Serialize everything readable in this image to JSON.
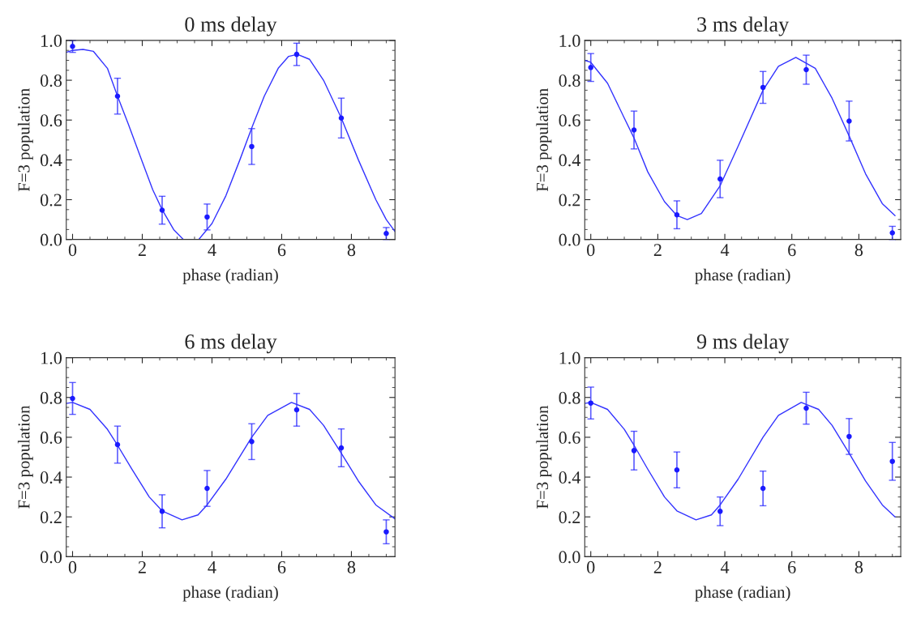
{
  "chart_data": [
    {
      "type": "scatter",
      "title": "0 ms delay",
      "xlabel": "phase (radian)",
      "ylabel": "F=3 population",
      "xlim": [
        -0.18,
        9.25
      ],
      "ylim": [
        0,
        1
      ],
      "xticks": [
        0,
        2,
        4,
        6,
        8
      ],
      "yticks": [
        {
          "value": 0,
          "label": "0.0"
        },
        {
          "value": 0.2,
          "label": "0.2"
        },
        {
          "value": 0.4,
          "label": "0.4"
        },
        {
          "value": 0.6,
          "label": "0.6"
        },
        {
          "value": 0.8,
          "label": "0.8"
        },
        {
          "value": 1,
          "label": "1.0"
        }
      ],
      "grid": false,
      "legend": false,
      "series": [
        {
          "type": "scatter",
          "marker": "circle",
          "color": "#1a1aff",
          "x": [
            0,
            1.29,
            2.57,
            3.86,
            5.14,
            6.43,
            7.71,
            9.0
          ],
          "values": [
            0.97,
            0.72,
            0.147,
            0.113,
            0.467,
            0.93,
            0.61,
            0.03
          ],
          "errors": [
            0.03,
            0.09,
            0.07,
            0.065,
            0.09,
            0.056,
            0.1,
            0.03
          ]
        },
        {
          "type": "line",
          "marker": "none",
          "color": "#3333ff",
          "x": [
            -0.18,
            0,
            0.3,
            0.6,
            1.0,
            1.29,
            1.6,
            2.0,
            2.3,
            2.57,
            2.9,
            3.18,
            3.4,
            3.62,
            4.0,
            4.4,
            4.8,
            5.14,
            5.5,
            5.9,
            6.2,
            6.45,
            6.8,
            7.2,
            7.71,
            8.2,
            8.7,
            9.0,
            9.25
          ],
          "values": [
            0.94,
            0.95,
            0.955,
            0.945,
            0.86,
            0.72,
            0.58,
            0.39,
            0.25,
            0.15,
            0.05,
            0.0,
            null,
            0.0,
            0.08,
            0.22,
            0.4,
            0.56,
            0.72,
            0.86,
            0.92,
            0.93,
            0.905,
            0.8,
            0.61,
            0.4,
            0.2,
            0.1,
            0.04
          ]
        }
      ]
    },
    {
      "type": "scatter",
      "title": "3 ms delay",
      "xlabel": "phase (radian)",
      "ylabel": "F=3 population",
      "xlim": [
        -0.18,
        9.25
      ],
      "ylim": [
        0,
        1
      ],
      "xticks": [
        0,
        2,
        4,
        6,
        8
      ],
      "yticks": [
        {
          "value": 0,
          "label": "0.0"
        },
        {
          "value": 0.2,
          "label": "0.2"
        },
        {
          "value": 0.4,
          "label": "0.4"
        },
        {
          "value": 0.6,
          "label": "0.6"
        },
        {
          "value": 0.8,
          "label": "0.8"
        },
        {
          "value": 1,
          "label": "1.0"
        }
      ],
      "grid": false,
      "legend": false,
      "series": [
        {
          "type": "scatter",
          "marker": "circle",
          "color": "#1a1aff",
          "x": [
            0,
            1.29,
            2.57,
            3.86,
            5.14,
            6.43,
            7.71,
            9.0
          ],
          "values": [
            0.864,
            0.55,
            0.124,
            0.304,
            0.764,
            0.853,
            0.595,
            0.033
          ],
          "errors": [
            0.07,
            0.095,
            0.07,
            0.094,
            0.08,
            0.073,
            0.1,
            0.033
          ]
        },
        {
          "type": "line",
          "marker": "none",
          "color": "#3333ff",
          "x": [
            -0.18,
            0,
            0.5,
            1.0,
            1.29,
            1.7,
            2.2,
            2.57,
            2.88,
            3.3,
            3.86,
            4.4,
            5.14,
            5.6,
            6.12,
            6.7,
            7.2,
            7.71,
            8.2,
            8.7,
            9.08
          ],
          "values": [
            0.9,
            0.89,
            0.785,
            0.61,
            0.51,
            0.34,
            0.19,
            0.12,
            0.1,
            0.13,
            0.27,
            0.47,
            0.75,
            0.87,
            0.915,
            0.86,
            0.71,
            0.52,
            0.33,
            0.18,
            0.12
          ]
        }
      ]
    },
    {
      "type": "scatter",
      "title": "6 ms delay",
      "xlabel": "phase (radian)",
      "ylabel": "F=3 population",
      "xlim": [
        -0.18,
        9.25
      ],
      "ylim": [
        0,
        1
      ],
      "xticks": [
        0,
        2,
        4,
        6,
        8
      ],
      "yticks": [
        {
          "value": 0,
          "label": "0.0"
        },
        {
          "value": 0.2,
          "label": "0.2"
        },
        {
          "value": 0.4,
          "label": "0.4"
        },
        {
          "value": 0.6,
          "label": "0.6"
        },
        {
          "value": 0.8,
          "label": "0.8"
        },
        {
          "value": 1,
          "label": "1.0"
        }
      ],
      "grid": false,
      "legend": false,
      "series": [
        {
          "type": "scatter",
          "marker": "circle",
          "color": "#1a1aff",
          "x": [
            0,
            1.29,
            2.57,
            3.86,
            5.14,
            6.43,
            7.71,
            9.0
          ],
          "values": [
            0.795,
            0.563,
            0.228,
            0.343,
            0.578,
            0.738,
            0.547,
            0.125
          ],
          "errors": [
            0.08,
            0.093,
            0.083,
            0.09,
            0.09,
            0.082,
            0.095,
            0.06
          ]
        },
        {
          "type": "line",
          "marker": "none",
          "color": "#3333ff",
          "x": [
            -0.18,
            0,
            0.5,
            1.0,
            1.29,
            1.7,
            2.2,
            2.57,
            3.14,
            3.6,
            3.86,
            4.4,
            5.14,
            5.6,
            6.28,
            6.8,
            7.2,
            7.71,
            8.2,
            8.7,
            9.25
          ],
          "values": [
            0.77,
            0.775,
            0.74,
            0.64,
            0.56,
            0.44,
            0.3,
            0.23,
            0.185,
            0.21,
            0.26,
            0.39,
            0.6,
            0.71,
            0.775,
            0.74,
            0.66,
            0.52,
            0.38,
            0.26,
            0.19
          ]
        }
      ]
    },
    {
      "type": "scatter",
      "title": "9 ms delay",
      "xlabel": "phase (radian)",
      "ylabel": "F=3 population",
      "xlim": [
        -0.18,
        9.25
      ],
      "ylim": [
        0,
        1
      ],
      "xticks": [
        0,
        2,
        4,
        6,
        8
      ],
      "yticks": [
        {
          "value": 0,
          "label": "0.0"
        },
        {
          "value": 0.2,
          "label": "0.2"
        },
        {
          "value": 0.4,
          "label": "0.4"
        },
        {
          "value": 0.6,
          "label": "0.6"
        },
        {
          "value": 0.8,
          "label": "0.8"
        },
        {
          "value": 1,
          "label": "1.0"
        }
      ],
      "grid": false,
      "legend": false,
      "series": [
        {
          "type": "scatter",
          "marker": "circle",
          "color": "#1a1aff",
          "x": [
            0,
            1.29,
            2.57,
            3.86,
            5.14,
            6.43,
            7.71,
            9.0
          ],
          "values": [
            0.772,
            0.533,
            0.436,
            0.228,
            0.343,
            0.746,
            0.604,
            0.479
          ],
          "errors": [
            0.08,
            0.097,
            0.09,
            0.072,
            0.087,
            0.08,
            0.09,
            0.095
          ]
        },
        {
          "type": "line",
          "marker": "none",
          "color": "#3333ff",
          "x": [
            -0.18,
            0,
            0.5,
            1.0,
            1.29,
            1.7,
            2.2,
            2.57,
            3.14,
            3.6,
            3.86,
            4.4,
            5.14,
            5.6,
            6.28,
            6.8,
            7.2,
            7.71,
            8.2,
            8.7,
            9.08
          ],
          "values": [
            0.77,
            0.775,
            0.74,
            0.64,
            0.56,
            0.44,
            0.3,
            0.23,
            0.185,
            0.21,
            0.26,
            0.39,
            0.6,
            0.71,
            0.775,
            0.74,
            0.66,
            0.52,
            0.38,
            0.26,
            0.2
          ]
        }
      ]
    }
  ]
}
